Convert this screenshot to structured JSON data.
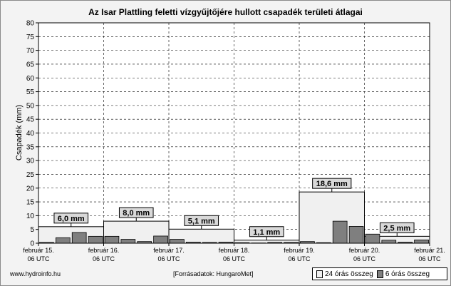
{
  "chart_data": {
    "type": "bar",
    "title": "Az Isar Plattling feletti vízgyűjtőjére hullott csapadék területi átlagai",
    "ylabel": "Csapadék (mm)",
    "xlabel": "",
    "ylim": [
      0,
      80
    ],
    "y_ticks": [
      0,
      5,
      10,
      15,
      20,
      25,
      30,
      35,
      40,
      45,
      50,
      55,
      60,
      65,
      70,
      75,
      80
    ],
    "x_ticks": [
      {
        "line1": "február 15.",
        "line2": "06 UTC"
      },
      {
        "line1": "február 16.",
        "line2": "06 UTC"
      },
      {
        "line1": "február 17.",
        "line2": "06 UTC"
      },
      {
        "line1": "február 18.",
        "line2": "06 UTC"
      },
      {
        "line1": "február 19.",
        "line2": "06 UTC"
      },
      {
        "line1": "február 20.",
        "line2": "06 UTC"
      },
      {
        "line1": "február 21.",
        "line2": "06 UTC"
      }
    ],
    "grid": true,
    "legend_position": "bottom-right",
    "series": [
      {
        "name": "24 órás összeg",
        "color": "#f0f0f0",
        "values": [
          6.0,
          8.0,
          5.1,
          1.1,
          18.6,
          2.5
        ],
        "labels": [
          "6,0 mm",
          "8,0 mm",
          "5,1 mm",
          "1,1 mm",
          "18,6 mm",
          "2,5 mm"
        ]
      },
      {
        "name": "6 órás összeg",
        "color": "#7f7f7f",
        "values": [
          0.3,
          2.0,
          3.9,
          2.5,
          2.5,
          1.4,
          0.6,
          2.6,
          1.4,
          0.4,
          0.3,
          0.4,
          0.2,
          0.1,
          0.3,
          0.3,
          0.6,
          0.2,
          8.0,
          6.1,
          3.3,
          1.1,
          0.4,
          1.2
        ]
      }
    ]
  },
  "footer": {
    "source_url": "www.hydroinfo.hu",
    "data_source": "[Forrásadatok: HungaroMet]"
  }
}
